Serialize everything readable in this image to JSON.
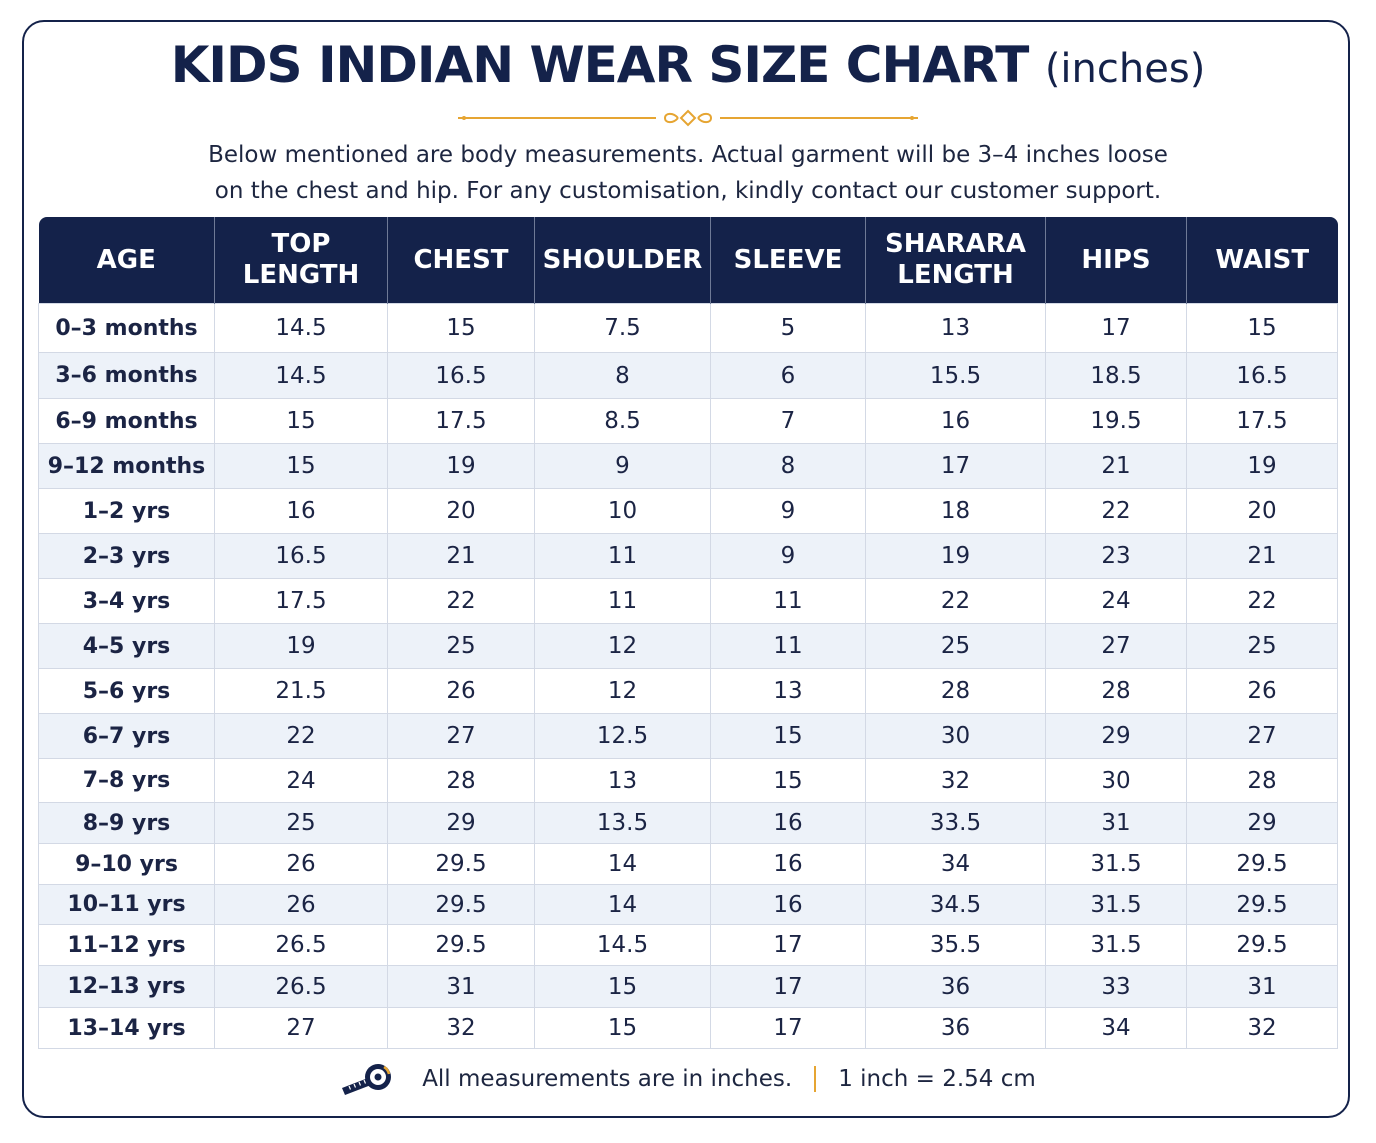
{
  "header": {
    "title": "KIDS INDIAN WEAR SIZE CHART",
    "title_unit": "(inches)",
    "subtitle_line1": "Below mentioned are body measurements. Actual garment will be 3–4 inches loose",
    "subtitle_line2": "on the chest and hip. For any customisation, kindly contact our customer support."
  },
  "table": {
    "columns": [
      [
        "AGE"
      ],
      [
        "TOP",
        "LENGTH"
      ],
      [
        "CHEST"
      ],
      [
        "SHOULDER"
      ],
      [
        "SLEEVE"
      ],
      [
        "SHARARA",
        "LENGTH"
      ],
      [
        "HIPS"
      ],
      [
        "WAIST"
      ]
    ],
    "rows": [
      [
        "0–3 months",
        "14.5",
        "15",
        "7.5",
        "5",
        "13",
        "17",
        "15"
      ],
      [
        "3–6 months",
        "14.5",
        "16.5",
        "8",
        "6",
        "15.5",
        "18.5",
        "16.5"
      ],
      [
        "6–9 months",
        "15",
        "17.5",
        "8.5",
        "7",
        "16",
        "19.5",
        "17.5"
      ],
      [
        "9–12 months",
        "15",
        "19",
        "9",
        "8",
        "17",
        "21",
        "19"
      ],
      [
        "1–2 yrs",
        "16",
        "20",
        "10",
        "9",
        "18",
        "22",
        "20"
      ],
      [
        "2–3 yrs",
        "16.5",
        "21",
        "11",
        "9",
        "19",
        "23",
        "21"
      ],
      [
        "3–4 yrs",
        "17.5",
        "22",
        "11",
        "11",
        "22",
        "24",
        "22"
      ],
      [
        "4–5 yrs",
        "19",
        "25",
        "12",
        "11",
        "25",
        "27",
        "25"
      ],
      [
        "5–6 yrs",
        "21.5",
        "26",
        "12",
        "13",
        "28",
        "28",
        "26"
      ],
      [
        "6–7 yrs",
        "22",
        "27",
        "12.5",
        "15",
        "30",
        "29",
        "27"
      ],
      [
        "7–8 yrs",
        "24",
        "28",
        "13",
        "15",
        "32",
        "30",
        "28"
      ],
      [
        "8–9 yrs",
        "25",
        "29",
        "13.5",
        "16",
        "33.5",
        "31",
        "29"
      ],
      [
        "9–10 yrs",
        "26",
        "29.5",
        "14",
        "16",
        "34",
        "31.5",
        "29.5"
      ],
      [
        "10–11 yrs",
        "26",
        "29.5",
        "14",
        "16",
        "34.5",
        "31.5",
        "29.5"
      ],
      [
        "11–12 yrs",
        "26.5",
        "29.5",
        "14.5",
        "17",
        "35.5",
        "31.5",
        "29.5"
      ],
      [
        "12–13 yrs",
        "26.5",
        "31",
        "15",
        "17",
        "36",
        "33",
        "31"
      ],
      [
        "13–14 yrs",
        "27",
        "32",
        "15",
        "17",
        "36",
        "34",
        "32"
      ]
    ]
  },
  "footer": {
    "icon": "measuring-tape-icon",
    "note": "All measurements are in inches.",
    "conversion": "1 inch = 2.54 cm"
  },
  "colors": {
    "navy": "#14224a",
    "accent_gold": "#e6a532",
    "row_stripe": "#edf2f9"
  }
}
